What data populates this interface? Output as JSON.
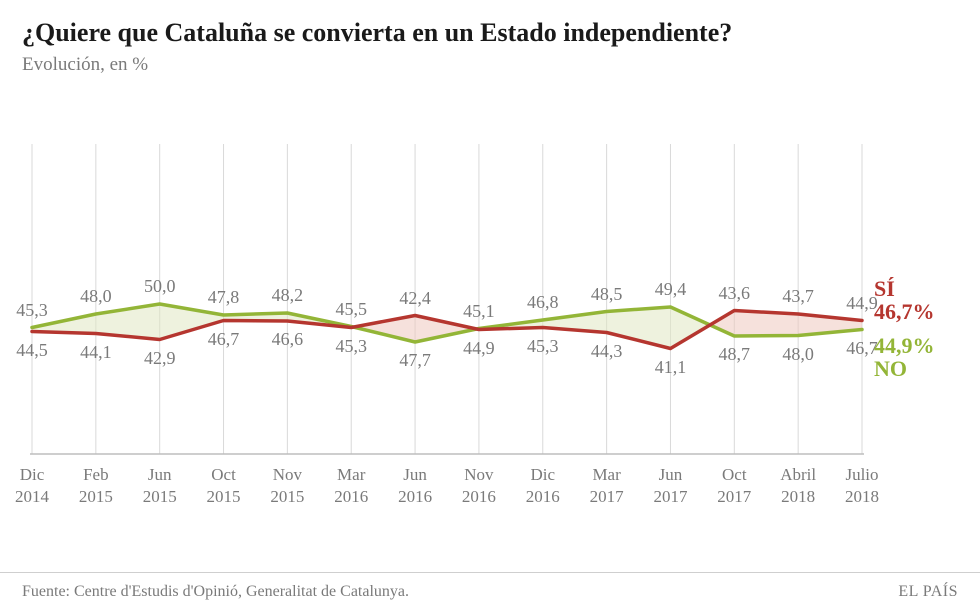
{
  "title": "¿Quiere que Cataluña se convierta en un Estado independiente?",
  "subtitle": "Evolución, en %",
  "chart": {
    "type": "line",
    "background_color": "#ffffff",
    "plot_bg": "#ffffff",
    "grid_color": "#d9d9d9",
    "grid_stroke_width": 1,
    "line_width": 3.5,
    "ylim": [
      20,
      80
    ],
    "x_categories": [
      {
        "m": "Dic",
        "y": "2014"
      },
      {
        "m": "Feb",
        "y": "2015"
      },
      {
        "m": "Jun",
        "y": "2015"
      },
      {
        "m": "Oct",
        "y": "2015"
      },
      {
        "m": "Nov",
        "y": "2015"
      },
      {
        "m": "Mar",
        "y": "2016"
      },
      {
        "m": "Jun",
        "y": "2016"
      },
      {
        "m": "Nov",
        "y": "2016"
      },
      {
        "m": "Dic",
        "y": "2016"
      },
      {
        "m": "Mar",
        "y": "2017"
      },
      {
        "m": "Jun",
        "y": "2017"
      },
      {
        "m": "Oct",
        "y": "2017"
      },
      {
        "m": "Abril",
        "y": "2018"
      },
      {
        "m": "Julio",
        "y": "2018"
      }
    ],
    "series": {
      "si": {
        "label": "SÍ",
        "color": "#b5362f",
        "fill_color": "#eec9c0",
        "fill_opacity": 0.55,
        "data": [
          44.5,
          44.1,
          42.9,
          46.7,
          46.6,
          45.3,
          47.7,
          44.9,
          45.3,
          44.3,
          41.1,
          48.7,
          48.0,
          46.7
        ],
        "end_value": "46,7%",
        "label_pos": "below"
      },
      "no": {
        "label": "NO",
        "color": "#93b537",
        "fill_color": "#e0e8c2",
        "fill_opacity": 0.55,
        "data": [
          45.3,
          48.0,
          50.0,
          47.8,
          48.2,
          45.5,
          42.4,
          45.1,
          46.8,
          48.5,
          49.4,
          43.6,
          43.7,
          44.9
        ],
        "end_value": "44,9%",
        "label_pos": "above"
      }
    },
    "label_fontsize": 18,
    "axis_fontsize": 17,
    "end_label_fontsize": 22
  },
  "footer": {
    "source": "Fuente: Centre d'Estudis d'Opinió, Generalitat de Catalunya.",
    "brand": "EL PAÍS"
  }
}
